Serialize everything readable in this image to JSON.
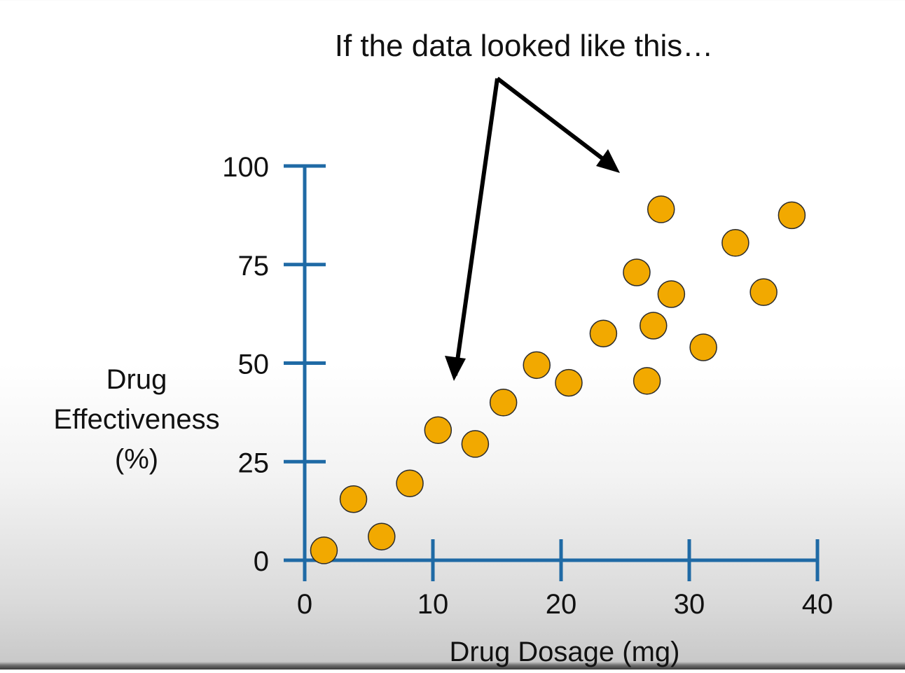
{
  "annotation": {
    "text": "If the data looked like this…"
  },
  "colors": {
    "axis": "#1f6aa5",
    "point_fill": "#f2a900",
    "point_stroke": "#2b2b2b",
    "arrow": "#000000",
    "text": "#111111"
  },
  "chart_data": {
    "type": "scatter",
    "title": "",
    "xlabel": "Drug Dosage (mg)",
    "ylabel": [
      "Drug",
      "Effectiveness",
      "(%)"
    ],
    "xlim": [
      0,
      40
    ],
    "ylim": [
      0,
      100
    ],
    "xticks": [
      0,
      10,
      20,
      30,
      40
    ],
    "yticks": [
      0,
      25,
      50,
      75,
      100
    ],
    "grid": false,
    "points": [
      {
        "x": 1.5,
        "y": 2.5
      },
      {
        "x": 3.8,
        "y": 15.5
      },
      {
        "x": 6.0,
        "y": 6.0
      },
      {
        "x": 8.2,
        "y": 19.5
      },
      {
        "x": 10.4,
        "y": 33.0
      },
      {
        "x": 13.3,
        "y": 29.5
      },
      {
        "x": 15.5,
        "y": 40.0
      },
      {
        "x": 18.1,
        "y": 49.5
      },
      {
        "x": 20.6,
        "y": 45.0
      },
      {
        "x": 23.3,
        "y": 57.5
      },
      {
        "x": 25.9,
        "y": 73.0
      },
      {
        "x": 26.7,
        "y": 45.5
      },
      {
        "x": 27.2,
        "y": 59.5
      },
      {
        "x": 27.8,
        "y": 89.0
      },
      {
        "x": 28.6,
        "y": 67.5
      },
      {
        "x": 31.1,
        "y": 54.0
      },
      {
        "x": 33.6,
        "y": 80.5
      },
      {
        "x": 35.8,
        "y": 68.0
      },
      {
        "x": 38.0,
        "y": 87.5
      }
    ]
  }
}
